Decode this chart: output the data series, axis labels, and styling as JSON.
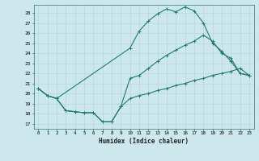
{
  "xlabel": "Humidex (Indice chaleur)",
  "xlim": [
    -0.5,
    23.5
  ],
  "ylim": [
    16.5,
    28.8
  ],
  "yticks": [
    17,
    18,
    19,
    20,
    21,
    22,
    23,
    24,
    25,
    26,
    27,
    28
  ],
  "xticks": [
    0,
    1,
    2,
    3,
    4,
    5,
    6,
    7,
    8,
    9,
    10,
    11,
    12,
    13,
    14,
    15,
    16,
    17,
    18,
    19,
    20,
    21,
    22,
    23
  ],
  "bg_color": "#cde8ec",
  "line_color": "#1e7a72",
  "grid_color": "#b8d8dc",
  "line1_x": [
    0,
    1,
    2,
    10,
    11,
    12,
    13,
    14,
    15,
    16,
    17,
    18,
    19,
    20,
    21,
    22,
    23
  ],
  "line1_y": [
    20.5,
    19.8,
    19.5,
    24.5,
    26.2,
    27.2,
    27.9,
    28.4,
    28.1,
    28.6,
    28.2,
    27.0,
    25.0,
    24.2,
    23.2,
    22.0,
    21.8
  ],
  "line2_x": [
    0,
    1,
    2,
    3,
    4,
    5,
    6,
    7,
    8,
    9,
    10,
    11,
    12,
    13,
    14,
    15,
    16,
    17,
    18,
    19,
    20,
    21,
    22,
    23
  ],
  "line2_y": [
    20.5,
    19.8,
    19.5,
    18.3,
    18.2,
    18.1,
    18.1,
    17.2,
    17.2,
    18.7,
    21.5,
    21.8,
    22.5,
    23.2,
    23.8,
    24.3,
    24.8,
    25.2,
    25.8,
    25.2,
    24.0,
    23.5,
    22.0,
    21.8
  ],
  "line3_x": [
    0,
    1,
    2,
    3,
    4,
    5,
    6,
    7,
    8,
    9,
    10,
    11,
    12,
    13,
    14,
    15,
    16,
    17,
    18,
    19,
    20,
    21,
    22,
    23
  ],
  "line3_y": [
    20.5,
    19.8,
    19.5,
    18.3,
    18.2,
    18.1,
    18.1,
    17.2,
    17.2,
    18.7,
    19.5,
    19.8,
    20.0,
    20.3,
    20.5,
    20.8,
    21.0,
    21.3,
    21.5,
    21.8,
    22.0,
    22.2,
    22.5,
    21.8
  ]
}
